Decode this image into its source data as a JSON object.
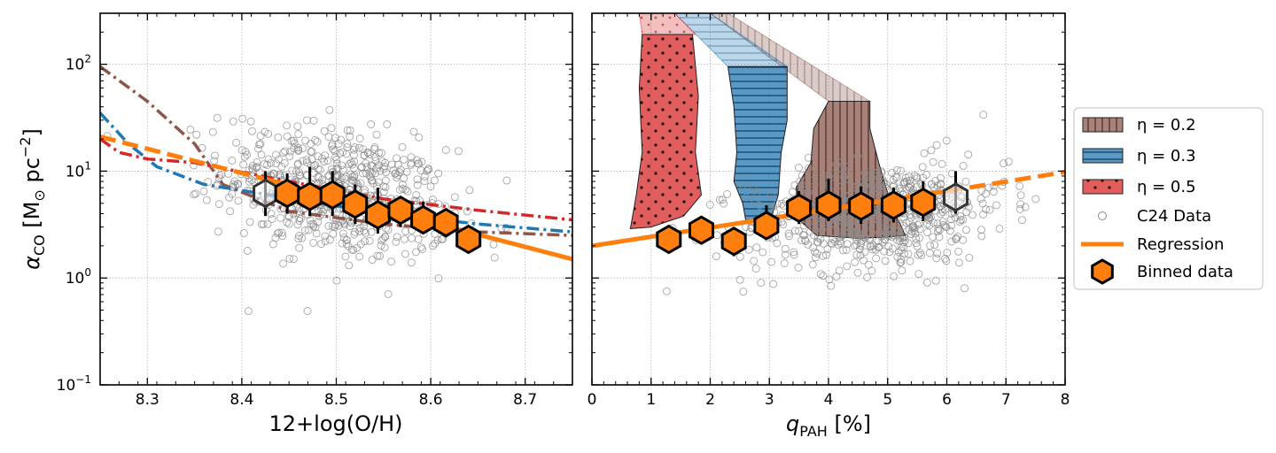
{
  "chart_data": [
    {
      "type": "scatter",
      "panel": "left",
      "xlabel": "12+log(O/H)",
      "ylabel": "α_CO [M⊙ pc⁻²]",
      "xlim": [
        8.25,
        8.75
      ],
      "ylim": [
        0.1,
        300
      ],
      "yscale": "log",
      "xticks": [
        8.3,
        8.4,
        8.5,
        8.6,
        8.7
      ],
      "xtick_labels": [
        "8.3",
        "8.4",
        "8.5",
        "8.6",
        "8.7"
      ],
      "yticks": [
        0.1,
        1,
        10,
        100
      ],
      "ytick_labels": [
        {
          "base": "10",
          "exp": "−1"
        },
        {
          "base": "10",
          "exp": "0"
        },
        {
          "base": "10",
          "exp": "1"
        },
        {
          "base": "10",
          "exp": "2"
        }
      ],
      "grid": true,
      "scatter_cloud": {
        "center_x": 8.5,
        "sigma_x": 0.06,
        "center_logy": 0.8,
        "sigma_logy": 0.3,
        "slope": -1.6,
        "count": 650
      },
      "regression": {
        "x": [
          8.25,
          8.43,
          8.75
        ],
        "y": [
          21,
          8.2,
          1.5
        ],
        "dashed_before": 8.43
      },
      "model_lines": [
        {
          "name": "brown",
          "color": "#8c564b",
          "style": "dashdot",
          "x": [
            8.25,
            8.3,
            8.35,
            8.38,
            8.45,
            8.55,
            8.65,
            8.75
          ],
          "y": [
            95,
            45,
            18,
            7.5,
            4.2,
            3.2,
            2.7,
            2.5
          ]
        },
        {
          "name": "blue",
          "color": "#1f77b4",
          "style": "dashdot",
          "x": [
            8.25,
            8.28,
            8.31,
            8.36,
            8.45,
            8.55,
            8.65,
            8.75
          ],
          "y": [
            35,
            18,
            11,
            7.5,
            5.6,
            4.0,
            3.2,
            2.7
          ]
        },
        {
          "name": "red",
          "color": "#d62728",
          "style": "dashdot",
          "x": [
            8.25,
            8.27,
            8.3,
            8.35,
            8.45,
            8.55,
            8.65,
            8.75
          ],
          "y": [
            20,
            15,
            13,
            12,
            8.0,
            5.5,
            4.3,
            3.5
          ]
        }
      ],
      "binned": {
        "x": [
          8.425,
          8.448,
          8.472,
          8.496,
          8.52,
          8.544,
          8.568,
          8.592,
          8.616,
          8.64
        ],
        "y": [
          6.2,
          6.2,
          5.8,
          6.0,
          4.9,
          3.9,
          4.3,
          3.5,
          3.3,
          2.3
        ],
        "yerr_low": [
          3.8,
          4.0,
          3.8,
          3.8,
          3.2,
          2.6,
          3.0,
          2.6,
          2.4,
          1.8
        ],
        "yerr_high": [
          10,
          9.5,
          11,
          10,
          7.5,
          7.0,
          5.8,
          5.2,
          4.3,
          2.9
        ],
        "outline_only": [
          true,
          false,
          false,
          false,
          false,
          false,
          false,
          false,
          false,
          false
        ]
      }
    },
    {
      "type": "scatter",
      "panel": "right",
      "xlabel": "q_PAH [%]",
      "xlim": [
        0,
        8
      ],
      "ylim": [
        0.1,
        300
      ],
      "yscale": "log",
      "xticks": [
        0,
        1,
        2,
        3,
        4,
        5,
        6,
        7,
        8
      ],
      "xtick_labels": [
        "0",
        "1",
        "2",
        "3",
        "4",
        "5",
        "6",
        "7",
        "8"
      ],
      "grid": true,
      "scatter_cloud": {
        "center_x": 4.8,
        "sigma_x": 1.1,
        "center_logy": 0.58,
        "sigma_logy": 0.25,
        "slope": 0.05,
        "count": 650
      },
      "regression": {
        "x": [
          0,
          6.0,
          8
        ],
        "y": [
          2.0,
          6.5,
          9.8
        ],
        "dashed_after": 6.0
      },
      "bands": [
        {
          "eta": "0.2",
          "color": "#8c564b",
          "hatch": "vertical",
          "xs_left": [
            4.0,
            3.75,
            3.7,
            3.45,
            3.5,
            3.8,
            4.5,
            4.9,
            5.3
          ],
          "ys_left": [
            45,
            25,
            12,
            7,
            3.5,
            2.5,
            2.35,
            2.4,
            2.5
          ],
          "xs_right": [
            5.3,
            5.05,
            4.85,
            4.7,
            4.7
          ],
          "ys_right": [
            2.5,
            5,
            12,
            25,
            45
          ],
          "top": [
            4.0,
            4.7
          ],
          "top_y": 45,
          "upper_band": {
            "x0": [
              2.0,
              2.3
            ],
            "x1": [
              4.0,
              4.7
            ],
            "y_top": 300,
            "y_bottom": 45
          }
        },
        {
          "eta": "0.3",
          "color": "#1f77b4",
          "hatch": "horizontal",
          "xs_left": [
            2.3,
            2.4,
            2.45,
            2.4,
            2.55,
            2.6,
            2.85
          ],
          "ys_left": [
            95,
            40,
            15,
            8,
            5,
            3.5,
            3.2
          ],
          "xs_right": [
            3.0,
            3.15,
            3.2,
            3.3,
            3.3,
            3.3
          ],
          "ys_right": [
            3.2,
            6,
            15,
            30,
            60,
            95
          ],
          "top": [
            2.3,
            3.3
          ],
          "top_y": 95,
          "upper_band": {
            "x0": [
              1.4,
              2.0
            ],
            "x1": [
              2.3,
              3.3
            ],
            "y_top": 300,
            "y_bottom": 95
          }
        },
        {
          "eta": "0.5",
          "color": "#d62728",
          "hatch": "dots",
          "xs_left": [
            0.85,
            0.8,
            0.85,
            0.75,
            0.65
          ],
          "ys_left": [
            190,
            60,
            15,
            6,
            2.9
          ],
          "xs_right": [
            1.0,
            1.55,
            1.85,
            1.75,
            1.8,
            1.7
          ],
          "ys_right": [
            3.0,
            3.8,
            6,
            15,
            50,
            190
          ],
          "top": [
            0.85,
            1.75
          ],
          "top_y": 190,
          "upper_band": {
            "x0": [
              0.8,
              1.4
            ],
            "x1": [
              0.85,
              1.75
            ],
            "y_top": 300,
            "y_bottom": 190
          }
        }
      ],
      "binned": {
        "x": [
          1.3,
          1.85,
          2.4,
          2.95,
          3.5,
          4.0,
          4.55,
          5.1,
          5.6,
          6.15
        ],
        "y": [
          2.3,
          2.8,
          2.2,
          3.1,
          4.5,
          4.8,
          4.7,
          4.8,
          5.1,
          5.7
        ],
        "yerr_low": [
          1.8,
          2.3,
          1.6,
          2.3,
          3.2,
          3.4,
          3.2,
          3.3,
          3.4,
          4.0
        ],
        "yerr_high": [
          2.9,
          3.4,
          2.9,
          4.8,
          6.5,
          8.5,
          7.2,
          7.0,
          8.0,
          10
        ],
        "outline_only": [
          false,
          false,
          false,
          false,
          false,
          false,
          false,
          false,
          false,
          true
        ]
      }
    }
  ],
  "legend": {
    "placement": "right",
    "entries": [
      {
        "name": "band-eta-02",
        "label": "η = 0.2",
        "kind": "patch",
        "color": "#8c564b",
        "hatch": "vertical"
      },
      {
        "name": "band-eta-03",
        "label": "η = 0.3",
        "kind": "patch",
        "color": "#1f77b4",
        "hatch": "horizontal"
      },
      {
        "name": "band-eta-05",
        "label": "η = 0.5",
        "kind": "patch",
        "color": "#d62728",
        "hatch": "dots"
      },
      {
        "name": "c24-data",
        "label": "C24 Data",
        "kind": "circle",
        "color": "#808080"
      },
      {
        "name": "regression",
        "label": "Regression",
        "kind": "line",
        "color": "#ff7f0e"
      },
      {
        "name": "binned-data",
        "label": "Binned data",
        "kind": "hexagon",
        "color": "#ff7f0e"
      }
    ]
  },
  "colors": {
    "scatter": "#808080",
    "regression": "#ff7f0e",
    "binned_fill": "#ff7f0e",
    "brown": "#8c564b",
    "blue": "#1f77b4",
    "red": "#d62728"
  }
}
